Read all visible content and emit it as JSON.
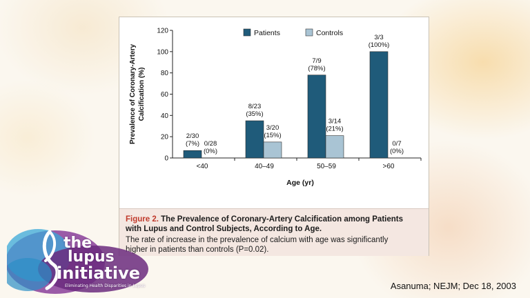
{
  "citation": "Asanuma; NEJM; Dec 18, 2003",
  "logo": {
    "the": "the",
    "lupus": "lupus",
    "initiative": "initiative",
    "tagline": "Eliminating Health Disparities in Lupus"
  },
  "caption": {
    "figure_label": "Figure 2.",
    "title_line1": "The Prevalence of Coronary-Artery Calcification among Patients",
    "title_line2": "with Lupus and Control Subjects, According to Age.",
    "body_line1": "The rate of increase in the prevalence of calcium with age was significantly",
    "body_line2": "higher in patients than controls (P=0.02)."
  },
  "colors": {
    "patients": "#1f5b7a",
    "controls": "#a9c4d4",
    "caption_red": "#c0392b"
  },
  "chart_data": {
    "type": "bar",
    "xlabel": "Age (yr)",
    "ylabel": "Prevalence of Coronary-Artery Calcification (%)",
    "ylabel_line1": "Prevalence of Coronary-Artery",
    "ylabel_line2": "Calcification (%)",
    "ylim": [
      0,
      120
    ],
    "yticks": [
      0,
      20,
      40,
      60,
      80,
      100,
      120
    ],
    "categories": [
      "<40",
      "40–49",
      "50–59",
      ">60"
    ],
    "legend_position": "top",
    "series": [
      {
        "name": "Patients",
        "values": [
          7,
          35,
          78,
          100
        ],
        "labels_top": [
          "2/30",
          "8/23",
          "7/9",
          "3/3"
        ],
        "labels_bottom": [
          "(7%)",
          "(35%)",
          "(78%)",
          "(100%)"
        ]
      },
      {
        "name": "Controls",
        "values": [
          0,
          15,
          21,
          0
        ],
        "labels_top": [
          "0/28",
          "3/20",
          "3/14",
          "0/7"
        ],
        "labels_bottom": [
          "(0%)",
          "(15%)",
          "(21%)",
          "(0%)"
        ]
      }
    ]
  }
}
